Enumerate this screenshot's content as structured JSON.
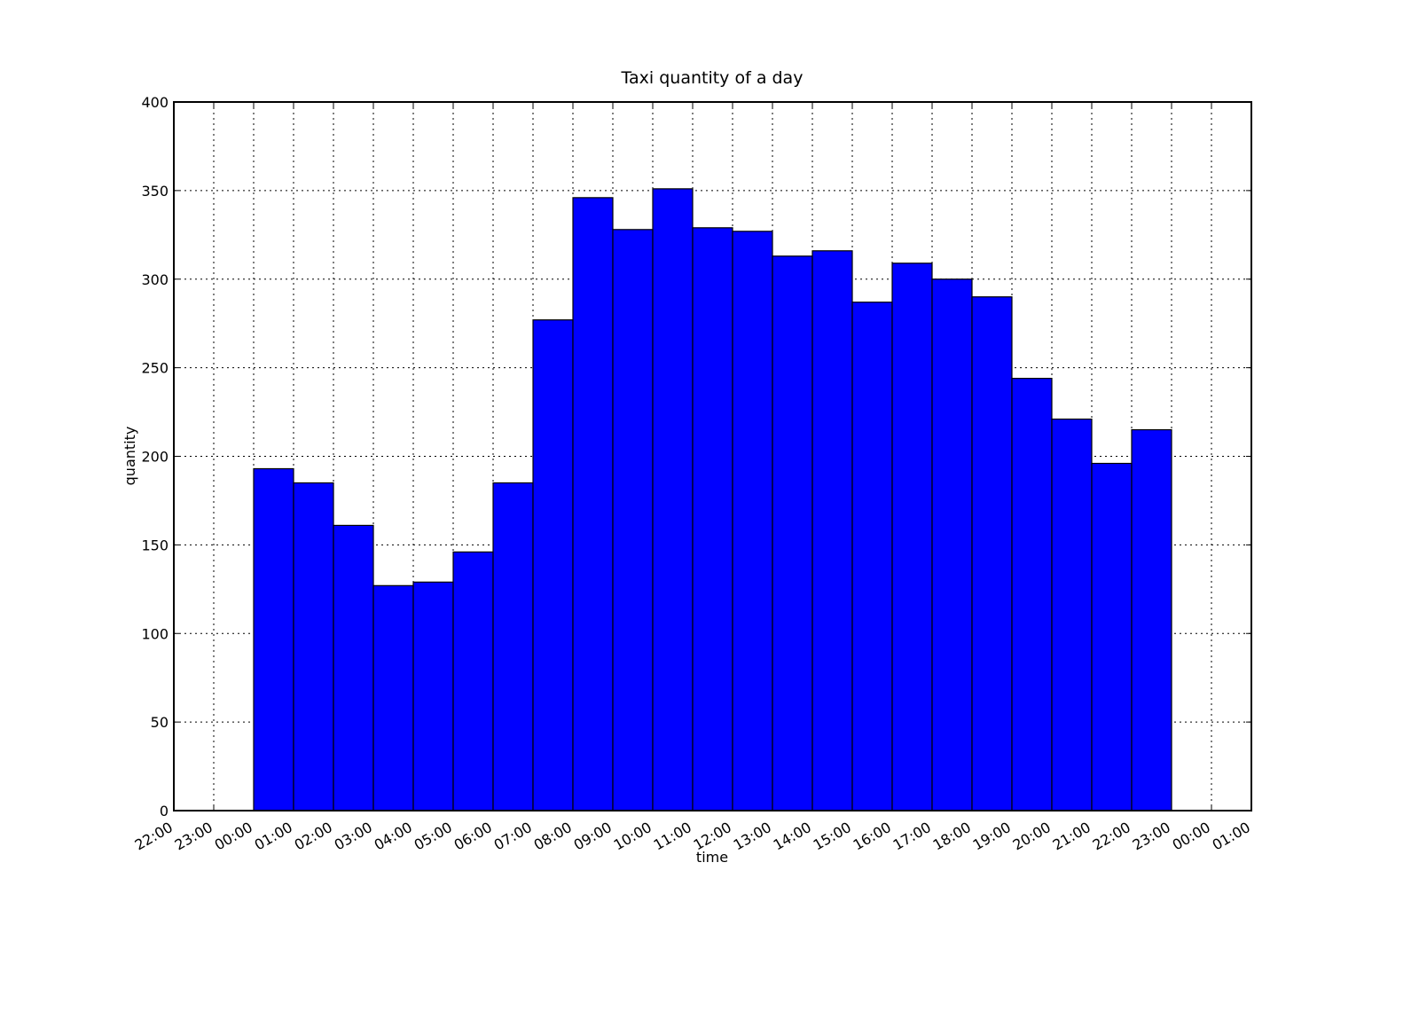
{
  "chart_data": {
    "type": "bar",
    "title": "Taxi quantity of a day",
    "xlabel": "time",
    "ylabel": "quantity",
    "x_tick_labels": [
      "22:00",
      "23:00",
      "00:00",
      "01:00",
      "02:00",
      "03:00",
      "04:00",
      "05:00",
      "06:00",
      "07:00",
      "08:00",
      "09:00",
      "10:00",
      "11:00",
      "12:00",
      "13:00",
      "14:00",
      "15:00",
      "16:00",
      "17:00",
      "18:00",
      "19:00",
      "20:00",
      "21:00",
      "22:00",
      "23:00",
      "00:00",
      "01:00"
    ],
    "categories": [
      "00:00",
      "01:00",
      "02:00",
      "03:00",
      "04:00",
      "05:00",
      "06:00",
      "07:00",
      "08:00",
      "09:00",
      "10:00",
      "11:00",
      "12:00",
      "13:00",
      "14:00",
      "15:00",
      "16:00",
      "17:00",
      "18:00",
      "19:00",
      "20:00",
      "21:00",
      "22:00"
    ],
    "values": [
      193,
      185,
      161,
      127,
      129,
      146,
      185,
      277,
      346,
      328,
      351,
      329,
      327,
      313,
      316,
      287,
      309,
      300,
      290,
      244,
      221,
      196,
      215
    ],
    "ylim": [
      0,
      400
    ],
    "y_ticks": [
      0,
      50,
      100,
      150,
      200,
      250,
      300,
      350,
      400
    ],
    "grid": true,
    "bar_color": "#0000ff",
    "edge_color": "#000000"
  }
}
